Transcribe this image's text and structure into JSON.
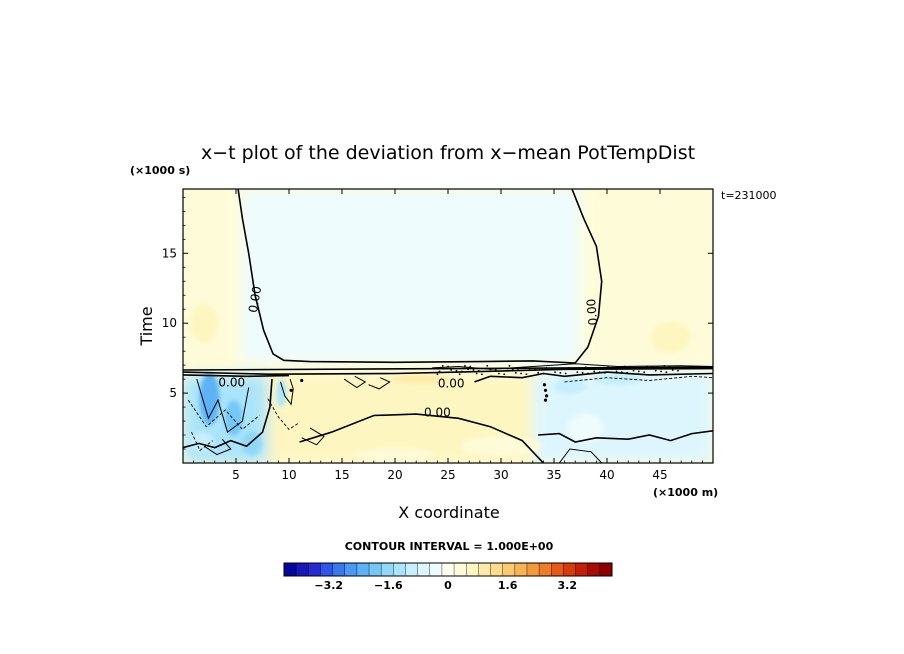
{
  "chart_data": {
    "type": "heatmap",
    "title": "x−t plot of the deviation from x−mean PotTempDist",
    "xlabel": "X coordinate",
    "ylabel": "Time",
    "x_unit": "(×1000 m)",
    "y_unit": "(×1000 s)",
    "time_annotation": "t=231000",
    "xlim": [
      0,
      50
    ],
    "ylim": [
      0,
      19.6
    ],
    "x_ticks": [
      5,
      10,
      15,
      20,
      25,
      30,
      35,
      40,
      45
    ],
    "y_ticks": [
      5,
      10,
      15
    ],
    "contour_labels": [
      "0.00",
      "0.00",
      "0.00",
      "0.00",
      "0.00"
    ],
    "contour_interval_text": "CONTOUR INTERVAL = 1.000E+00",
    "colorbar": {
      "tick_labels": [
        "−3.2",
        "−1.6",
        "0",
        "1.6",
        "3.2"
      ],
      "tick_values": [
        -3.2,
        -1.6,
        0,
        1.6,
        3.2
      ],
      "range": [
        -4.4,
        4.4
      ],
      "colors": [
        "#06069c",
        "#1818b8",
        "#2a2ad2",
        "#2f54e8",
        "#3a78f0",
        "#4a98f4",
        "#5cb2f4",
        "#74c8f6",
        "#8fd8f8",
        "#aae4fa",
        "#c6eefc",
        "#ddf6fe",
        "#eefcfe",
        "#fefef0",
        "#fefcd8",
        "#fef6c0",
        "#fdeaa6",
        "#fcdc8c",
        "#fbca70",
        "#f8b454",
        "#f59a3c",
        "#ef7c26",
        "#e65a16",
        "#d83a0e",
        "#c21e08",
        "#a80c04",
        "#8c0000"
      ]
    },
    "regions": [
      {
        "name": "upper-left-warm",
        "x": [
          0,
          5.5
        ],
        "t": [
          6.5,
          19.6
        ],
        "value": 0.25
      },
      {
        "name": "upper-middle-cool",
        "x": [
          5.5,
          37.5
        ],
        "t": [
          7.2,
          19.6
        ],
        "value": -0.2
      },
      {
        "name": "upper-right-warm",
        "x": [
          37.5,
          50
        ],
        "t": [
          6.8,
          19.6
        ],
        "value": 0.35
      },
      {
        "name": "lower-left-cold",
        "x": [
          0,
          8
        ],
        "t": [
          0,
          6.3
        ],
        "value": -1.3
      },
      {
        "name": "lower-middle-warm",
        "x": [
          8,
          33
        ],
        "t": [
          0,
          6.3
        ],
        "value": 0.6
      },
      {
        "name": "lower-right-cool",
        "x": [
          33,
          50
        ],
        "t": [
          0,
          6.6
        ],
        "value": -0.5
      }
    ]
  }
}
